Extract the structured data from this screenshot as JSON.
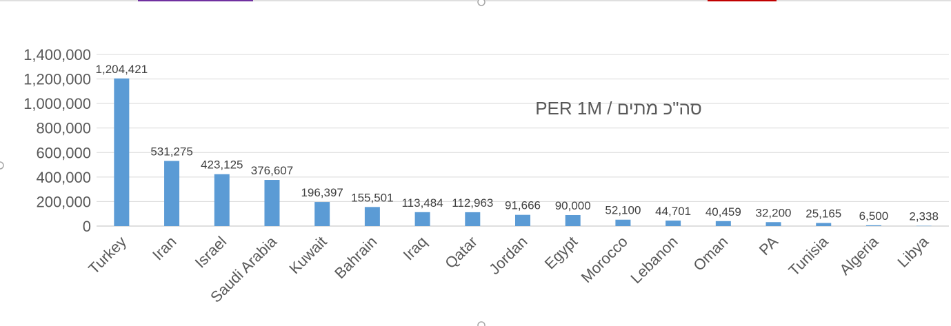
{
  "chart_data": {
    "type": "bar",
    "title": "PER 1M / סה\"כ מתים",
    "xlabel": "",
    "ylabel": "",
    "categories": [
      "Turkey",
      "Iran",
      "Israel",
      "Saudi Arabia",
      "Kuwait",
      "Bahrain",
      "Iraq",
      "Qatar",
      "Jordan",
      "Egypt",
      "Morocco",
      "Lebanon",
      "Oman",
      "PA",
      "Tunisia",
      "Algeria",
      "Libya"
    ],
    "values": [
      1204421,
      531275,
      423125,
      376607,
      196397,
      155501,
      113484,
      112963,
      91666,
      90000,
      52100,
      44701,
      40459,
      32200,
      25165,
      6500,
      2338
    ],
    "value_labels": [
      "1,204,421",
      "531,275",
      "423,125",
      "376,607",
      "196,397",
      "155,501",
      "113,484",
      "112,963",
      "91,666",
      "90,000",
      "52,100",
      "44,701",
      "40,459",
      "32,200",
      "25,165",
      "6,500",
      "2,338"
    ],
    "ylim": [
      0,
      1400000
    ],
    "yticks": [
      0,
      200000,
      400000,
      600000,
      800000,
      1000000,
      1200000,
      1400000
    ],
    "ytick_labels": [
      "0",
      "200,000",
      "400,000",
      "600,000",
      "800,000",
      "1,000,000",
      "1,200,000",
      "1,400,000"
    ],
    "grid": true,
    "legend": "none",
    "bar_color": "#5B9BD5",
    "grid_color": "#D9D9D9",
    "text_color": "#595959"
  }
}
